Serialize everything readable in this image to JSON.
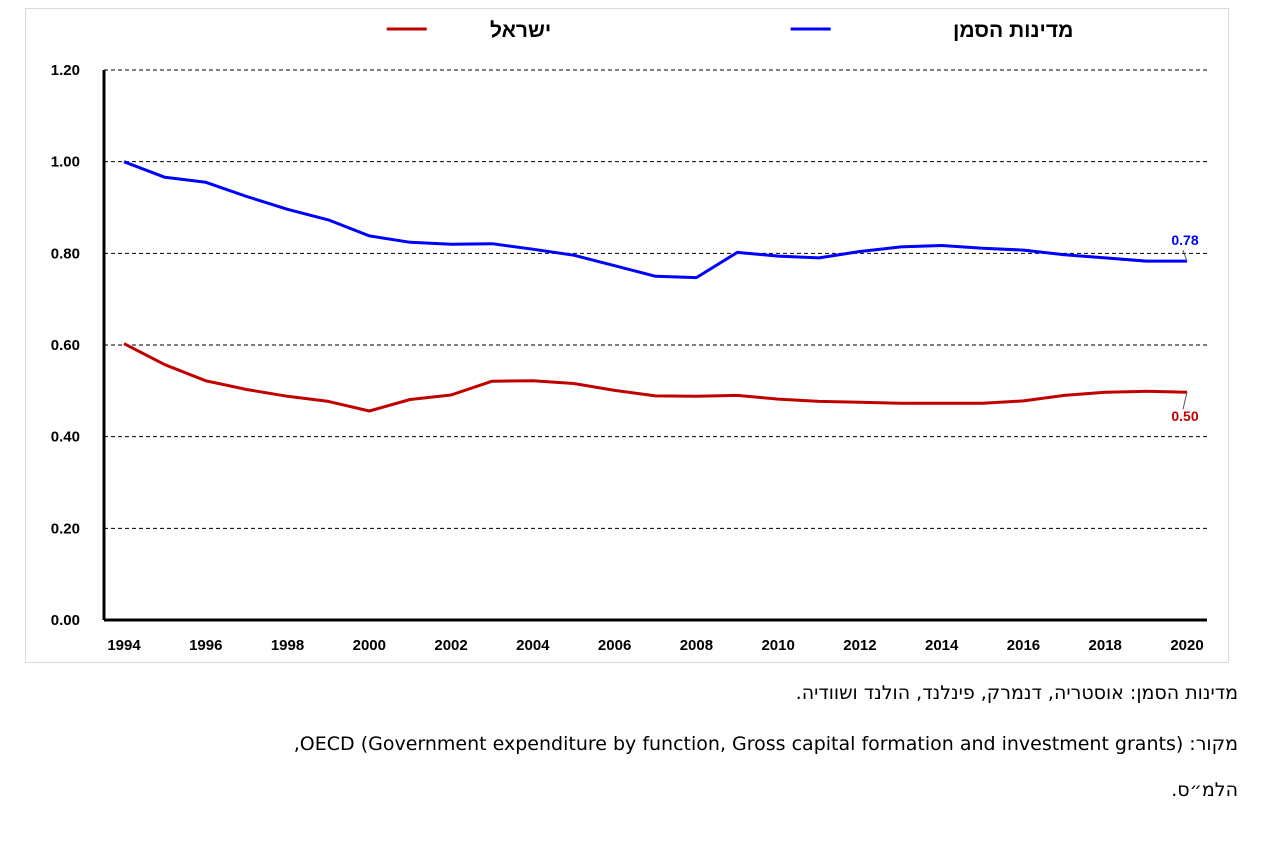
{
  "chart_data": {
    "type": "line",
    "title": "",
    "xlabel": "",
    "ylabel": "",
    "ylim": [
      0,
      1.2
    ],
    "yticks": [
      "0.00",
      "0.20",
      "0.40",
      "0.60",
      "0.80",
      "1.00",
      "1.20"
    ],
    "xticks": [
      "1994",
      "1996",
      "1998",
      "2000",
      "2002",
      "2004",
      "2006",
      "2008",
      "2010",
      "2012",
      "2014",
      "2016",
      "2018",
      "2020"
    ],
    "x": [
      1994,
      1995,
      1996,
      1997,
      1998,
      1999,
      2000,
      2001,
      2002,
      2003,
      2004,
      2005,
      2006,
      2007,
      2008,
      2009,
      2010,
      2011,
      2012,
      2013,
      2014,
      2015,
      2016,
      2017,
      2018,
      2019,
      2020
    ],
    "grid": true,
    "legend": "top",
    "series": [
      {
        "name": "מדינות הסמן",
        "color": "#0000ff",
        "values": [
          1.0,
          0.966,
          0.955,
          0.924,
          0.896,
          0.873,
          0.838,
          0.824,
          0.82,
          0.821,
          0.809,
          0.796,
          0.773,
          0.75,
          0.747,
          0.802,
          0.794,
          0.79,
          0.804,
          0.814,
          0.817,
          0.811,
          0.807,
          0.797,
          0.79,
          0.783,
          0.783
        ],
        "end_label": "0.78"
      },
      {
        "name": "ישראל",
        "color": "#c00000",
        "values": [
          0.603,
          0.557,
          0.522,
          0.503,
          0.488,
          0.477,
          0.456,
          0.481,
          0.491,
          0.521,
          0.522,
          0.516,
          0.501,
          0.489,
          0.488,
          0.49,
          0.482,
          0.477,
          0.475,
          0.473,
          0.473,
          0.473,
          0.478,
          0.49,
          0.497,
          0.499,
          0.497
        ],
        "end_label": "0.50"
      }
    ]
  },
  "notes": {
    "countries": "מדינות הסמן: אוסטריה, דנמרק, פינלנד, הולנד ושוודיה.",
    "source_line1": "מקור: OECD (Government expenditure by function, Gross capital formation and investment grants),",
    "source_line2": "הלמ״ס."
  }
}
